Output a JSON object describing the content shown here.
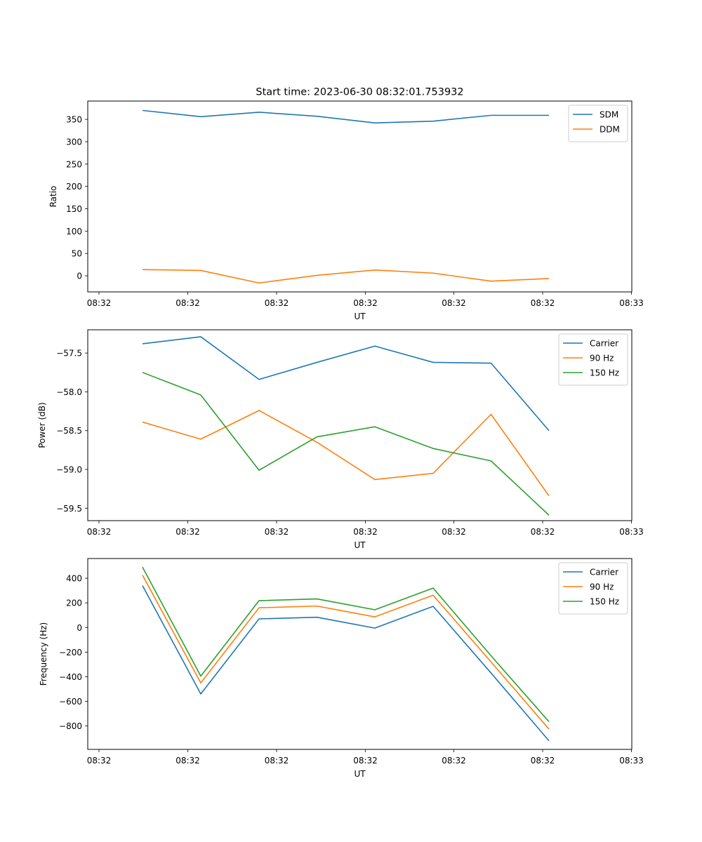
{
  "chart_data": [
    {
      "type": "line",
      "title": "Start time: 2023-06-30 08:32:01.753932",
      "xlabel": "UT",
      "ylabel": "Ratio",
      "x_tick_labels": [
        "08:32",
        "08:32",
        "08:32",
        "08:32",
        "08:32",
        "08:32",
        "08:32",
        "08:33"
      ],
      "y_ticks": [
        0,
        50,
        100,
        150,
        200,
        250,
        300,
        350
      ],
      "ylim": [
        -36,
        391
      ],
      "legend_position": "top-right",
      "series": [
        {
          "name": "SDM",
          "color": "#1f77b4",
          "values": [
            370,
            356,
            366,
            357,
            342,
            346,
            359,
            359
          ]
        },
        {
          "name": "DDM",
          "color": "#ff7f0e",
          "values": [
            14,
            12,
            -16,
            1,
            13,
            6,
            -12,
            -6
          ]
        }
      ]
    },
    {
      "type": "line",
      "title": "",
      "xlabel": "UT",
      "ylabel": "Power (dB)",
      "x_tick_labels": [
        "08:32",
        "08:32",
        "08:32",
        "08:32",
        "08:32",
        "08:32",
        "08:32",
        "08:33"
      ],
      "y_ticks": [
        -59.5,
        -59.0,
        -58.5,
        -58.0,
        -57.5
      ],
      "y_tick_labels": [
        "−59.5",
        "−59.0",
        "−58.5",
        "−58.0",
        "−57.5"
      ],
      "ylim": [
        -59.66,
        -57.2
      ],
      "legend_position": "top-right",
      "series": [
        {
          "name": "Carrier",
          "color": "#1f77b4",
          "values": [
            -57.38,
            -57.29,
            -57.84,
            -57.62,
            -57.41,
            -57.62,
            -57.63,
            -58.5
          ]
        },
        {
          "name": "90 Hz",
          "color": "#ff7f0e",
          "values": [
            -58.39,
            -58.61,
            -58.24,
            -58.65,
            -59.13,
            -59.05,
            -58.29,
            -59.34
          ]
        },
        {
          "name": "150 Hz",
          "color": "#2ca02c",
          "values": [
            -57.75,
            -58.04,
            -59.01,
            -58.58,
            -58.45,
            -58.73,
            -58.89,
            -59.59
          ]
        }
      ]
    },
    {
      "type": "line",
      "title": "",
      "xlabel": "UT",
      "ylabel": "Frequency (Hz)",
      "x_tick_labels": [
        "08:32",
        "08:32",
        "08:32",
        "08:32",
        "08:32",
        "08:32",
        "08:32",
        "08:33"
      ],
      "y_ticks": [
        -800,
        -600,
        -400,
        -200,
        0,
        200,
        400
      ],
      "y_tick_labels": [
        "−800",
        "−600",
        "−400",
        "−200",
        "0",
        "200",
        "400"
      ],
      "ylim": [
        -990,
        560
      ],
      "legend_position": "top-right",
      "series": [
        {
          "name": "Carrier",
          "color": "#1f77b4",
          "values": [
            340,
            -540,
            70,
            83,
            -5,
            172,
            -370,
            -920
          ]
        },
        {
          "name": "90 Hz",
          "color": "#ff7f0e",
          "values": [
            425,
            -450,
            160,
            174,
            86,
            262,
            -280,
            -825
          ]
        },
        {
          "name": "150 Hz",
          "color": "#2ca02c",
          "values": [
            490,
            -395,
            218,
            232,
            144,
            320,
            -230,
            -765
          ]
        }
      ]
    }
  ]
}
